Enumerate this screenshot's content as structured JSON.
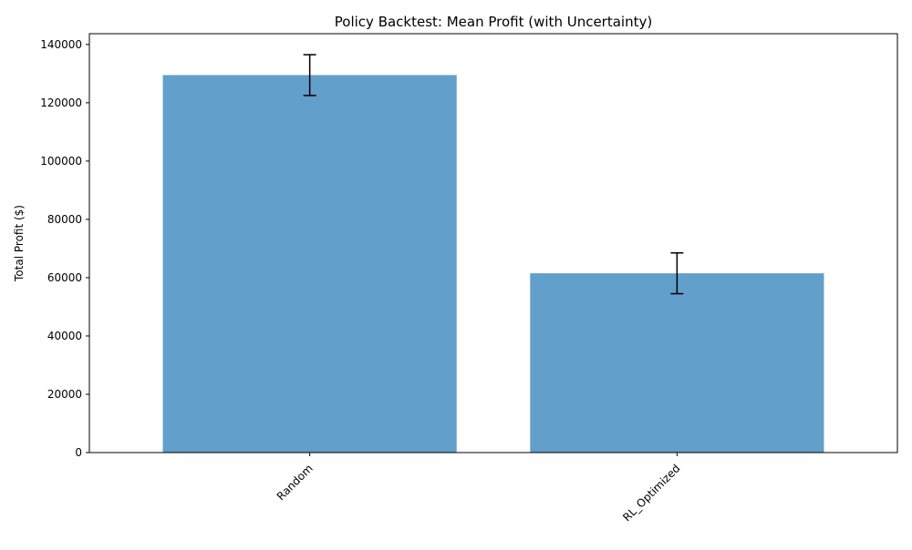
{
  "chart_data": {
    "type": "bar",
    "title": "Policy Backtest: Mean Profit (with Uncertainty)",
    "xlabel": "",
    "ylabel": "Total Profit ($)",
    "categories": [
      "Random",
      "RL_Optimized"
    ],
    "values": [
      129500,
      61500
    ],
    "errors": [
      7000,
      7000
    ],
    "ylim": [
      0,
      143700
    ],
    "yticks": [
      0,
      20000,
      40000,
      60000,
      80000,
      100000,
      120000,
      140000
    ],
    "x_tick_rotation_deg": 45,
    "grid": false,
    "legend": "none",
    "colors": {
      "bar": "#629fca",
      "error_bar": "#000000",
      "axis": "#000000"
    }
  }
}
